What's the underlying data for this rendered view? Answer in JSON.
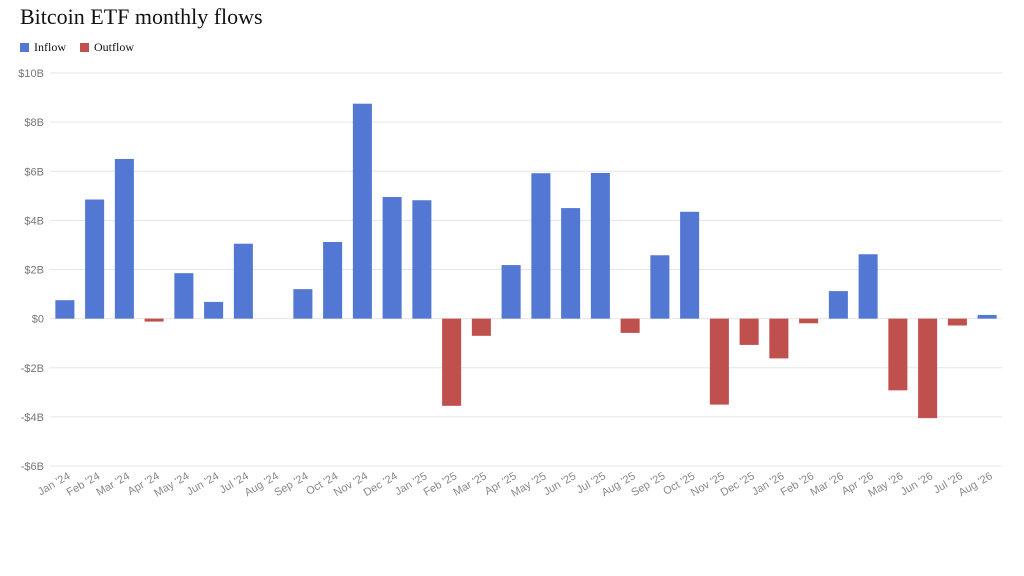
{
  "chart_data": {
    "type": "bar",
    "title": "Bitcoin ETF monthly flows",
    "legend": {
      "placement": "top-left",
      "items": [
        {
          "label": "Inflow",
          "color": "#5278d3"
        },
        {
          "label": "Outflow",
          "color": "#c0504d"
        }
      ]
    },
    "categories": [
      "Jan '24",
      "Feb '24",
      "Mar '24",
      "Apr '24",
      "May '24",
      "Jun '24",
      "Jul '24",
      "Aug '24",
      "Sep '24",
      "Oct '24",
      "Nov '24",
      "Dec '24",
      "Jan '25",
      "Feb '25",
      "Mar '25",
      "Apr '25",
      "May '25",
      "Jun '25",
      "Jul '25",
      "Aug '25",
      "Sep '25",
      "Oct '25",
      "Nov '25",
      "Dec '25",
      "Jan '26",
      "Feb '26",
      "Mar '26",
      "Apr '26",
      "May '26",
      "Jun '26",
      "Jul '26",
      "Aug '26"
    ],
    "values": [
      0.75,
      4.85,
      6.5,
      -0.12,
      1.85,
      0.68,
      3.05,
      0,
      1.2,
      3.12,
      8.75,
      4.95,
      4.82,
      -3.55,
      -0.7,
      2.18,
      5.92,
      4.5,
      5.93,
      -0.58,
      2.58,
      4.35,
      -3.5,
      -1.07,
      -1.62,
      -0.19,
      1.12,
      2.62,
      -2.92,
      -4.05,
      -0.28,
      0.15
    ],
    "unit": "USD billions",
    "ylim": [
      -6,
      10
    ],
    "yticks": [
      {
        "value": 10,
        "label": "$10B"
      },
      {
        "value": 8,
        "label": "$8B"
      },
      {
        "value": 6,
        "label": "$6B"
      },
      {
        "value": 4,
        "label": "$4B"
      },
      {
        "value": 2,
        "label": "$2B"
      },
      {
        "value": 0,
        "label": "$0"
      },
      {
        "value": -2,
        "label": "-$2B"
      },
      {
        "value": -4,
        "label": "-$4B"
      },
      {
        "value": -6,
        "label": "-$6B"
      }
    ],
    "grid": true,
    "colors": {
      "inflow": "#5278d3",
      "outflow": "#c0504d",
      "grid": "#e6e6e6"
    }
  }
}
